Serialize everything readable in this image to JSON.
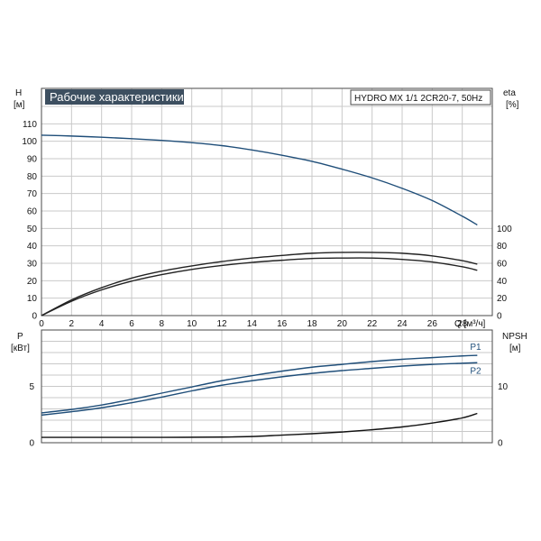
{
  "chart_data": [
    {
      "type": "line",
      "title": "Рабочие характеристики",
      "model": "HYDRO MX 1/1 2CR20-7, 50Hz",
      "xlabel": "Q [м³/ч]",
      "x_ticks": [
        "0",
        "2",
        "4",
        "6",
        "8",
        "10",
        "12",
        "14",
        "16",
        "18",
        "20",
        "22",
        "24",
        "26",
        "28"
      ],
      "xlim": [
        0,
        30
      ],
      "ylabel_left": "H",
      "ylabel_left_unit": "[м]",
      "ylim_left": [
        0,
        120
      ],
      "y_ticks_left": [
        "0",
        "10",
        "20",
        "30",
        "40",
        "50",
        "60",
        "70",
        "80",
        "90",
        "100",
        "110"
      ],
      "ylabel_right": "eta",
      "ylabel_right_unit": "[%]",
      "ylim_right": [
        0,
        240
      ],
      "y_ticks_right": [
        "0",
        "20",
        "40",
        "60",
        "80",
        "100"
      ],
      "grid": true,
      "series": [
        {
          "axis": "left",
          "color": "#1f4e79",
          "x": [
            0,
            2,
            4,
            6,
            8,
            10,
            12,
            14,
            16,
            18,
            20,
            22,
            24,
            26,
            28,
            29
          ],
          "values": [
            103.5,
            103,
            102.3,
            101.5,
            100.5,
            99.2,
            97.5,
            95,
            92,
            88.5,
            84,
            79,
            73,
            66,
            57,
            52
          ]
        },
        {
          "axis": "right",
          "color": "#222222",
          "x": [
            0,
            2,
            4,
            6,
            8,
            10,
            12,
            14,
            16,
            18,
            20,
            22,
            24,
            26,
            28,
            29
          ],
          "values": [
            0,
            18,
            32,
            43,
            51,
            57,
            62,
            66,
            69,
            71.5,
            72.5,
            72.5,
            71.5,
            68.5,
            63,
            59
          ]
        },
        {
          "axis": "right",
          "color": "#222222",
          "x": [
            0,
            2,
            4,
            6,
            8,
            10,
            12,
            14,
            16,
            18,
            20,
            22,
            24,
            26,
            28,
            29
          ],
          "values": [
            0,
            16.5,
            29.5,
            39.5,
            47,
            53,
            57.5,
            61,
            63.5,
            65.5,
            66,
            66,
            64.5,
            61.5,
            56,
            52
          ]
        }
      ]
    },
    {
      "type": "line",
      "ylabel_left": "P",
      "ylabel_left_unit": "[кВт]",
      "ylim_left": [
        0,
        10
      ],
      "y_ticks_left": [
        "0",
        "5"
      ],
      "ylabel_right": "NPSH",
      "ylabel_right_unit": "[м]",
      "ylim_right": [
        0,
        20
      ],
      "y_ticks_right": [
        "0",
        "10"
      ],
      "xlim": [
        0,
        30
      ],
      "grid": true,
      "series": [
        {
          "name": "P1",
          "axis": "left",
          "color": "#1f4e79",
          "x": [
            0,
            2,
            4,
            6,
            8,
            10,
            12,
            14,
            16,
            18,
            20,
            22,
            24,
            26,
            28,
            29
          ],
          "values": [
            2.65,
            2.95,
            3.35,
            3.85,
            4.4,
            4.95,
            5.5,
            5.95,
            6.35,
            6.7,
            6.95,
            7.2,
            7.4,
            7.55,
            7.7,
            7.75
          ]
        },
        {
          "name": "P2",
          "axis": "left",
          "color": "#1f4e79",
          "x": [
            0,
            2,
            4,
            6,
            8,
            10,
            12,
            14,
            16,
            18,
            20,
            22,
            24,
            26,
            28,
            29
          ],
          "values": [
            2.45,
            2.75,
            3.1,
            3.55,
            4.05,
            4.6,
            5.1,
            5.5,
            5.85,
            6.15,
            6.4,
            6.6,
            6.8,
            6.95,
            7.05,
            7.1
          ]
        },
        {
          "axis": "right",
          "color": "#111111",
          "x": [
            0,
            4,
            8,
            12,
            14,
            16,
            18,
            20,
            22,
            24,
            26,
            28,
            29
          ],
          "values": [
            0.95,
            0.95,
            0.95,
            1.0,
            1.1,
            1.35,
            1.6,
            1.9,
            2.3,
            2.8,
            3.5,
            4.4,
            5.2
          ]
        }
      ]
    }
  ]
}
